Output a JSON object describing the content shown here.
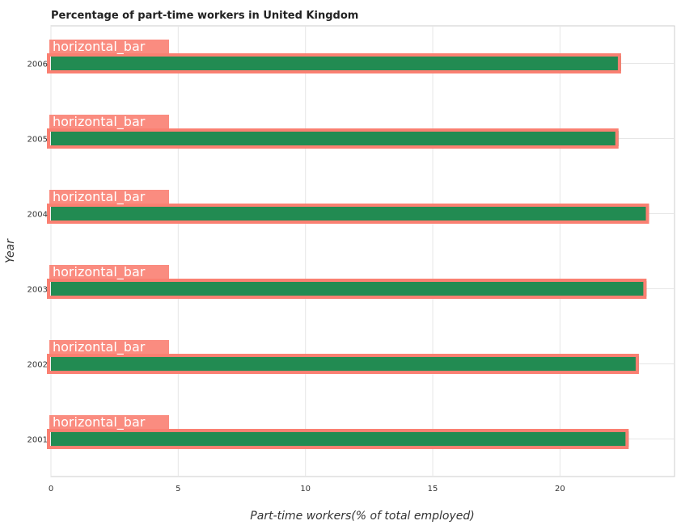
{
  "chart_data": {
    "type": "bar",
    "orientation": "horizontal",
    "title": "Percentage of part-time workers in United Kingdom",
    "xlabel": "Part-time workers(% of total employed)",
    "ylabel": "Year",
    "categories": [
      "2001",
      "2002",
      "2003",
      "2004",
      "2005",
      "2006"
    ],
    "values": [
      22.7,
      23.1,
      23.4,
      23.5,
      22.3,
      22.4
    ],
    "xlim": [
      0,
      24.5
    ],
    "xticks": [
      0,
      5,
      10,
      15,
      20
    ],
    "grid": true,
    "bar_color": "#228b52",
    "annotation_color": "#fa8072",
    "annotation_label": "horizontal_bar"
  }
}
